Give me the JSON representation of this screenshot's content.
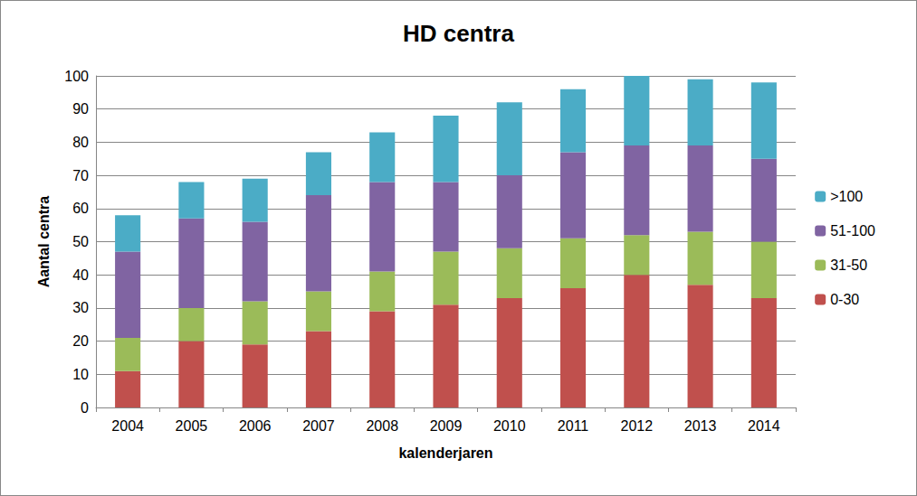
{
  "chart_data": {
    "type": "bar",
    "title": "HD centra",
    "x_label": "kalenderjaren",
    "y_label": "Aantal centra",
    "categories": [
      "2004",
      "2005",
      "2006",
      "2007",
      "2008",
      "2009",
      "2010",
      "2011",
      "2012",
      "2013",
      "2014"
    ],
    "series": [
      {
        "name": "0-30",
        "color": "#c0504d",
        "values": [
          11,
          20,
          19,
          23,
          29,
          31,
          33,
          36,
          40,
          37,
          33
        ]
      },
      {
        "name": "31-50",
        "color": "#9bbb59",
        "values": [
          10,
          10,
          13,
          12,
          12,
          16,
          15,
          15,
          12,
          16,
          17
        ]
      },
      {
        "name": "51-100",
        "color": "#8064a2",
        "values": [
          26,
          27,
          24,
          29,
          27,
          21,
          22,
          26,
          27,
          26,
          25
        ]
      },
      {
        "name": ">100",
        "color": "#4bacc6",
        "values": [
          11,
          11,
          13,
          13,
          15,
          20,
          22,
          19,
          21,
          20,
          23
        ]
      }
    ],
    "ylim": [
      0,
      100
    ],
    "yticks": [
      0,
      10,
      20,
      30,
      40,
      50,
      60,
      70,
      80,
      90,
      100
    ],
    "stacked": true,
    "grid": true,
    "legend": "right"
  }
}
